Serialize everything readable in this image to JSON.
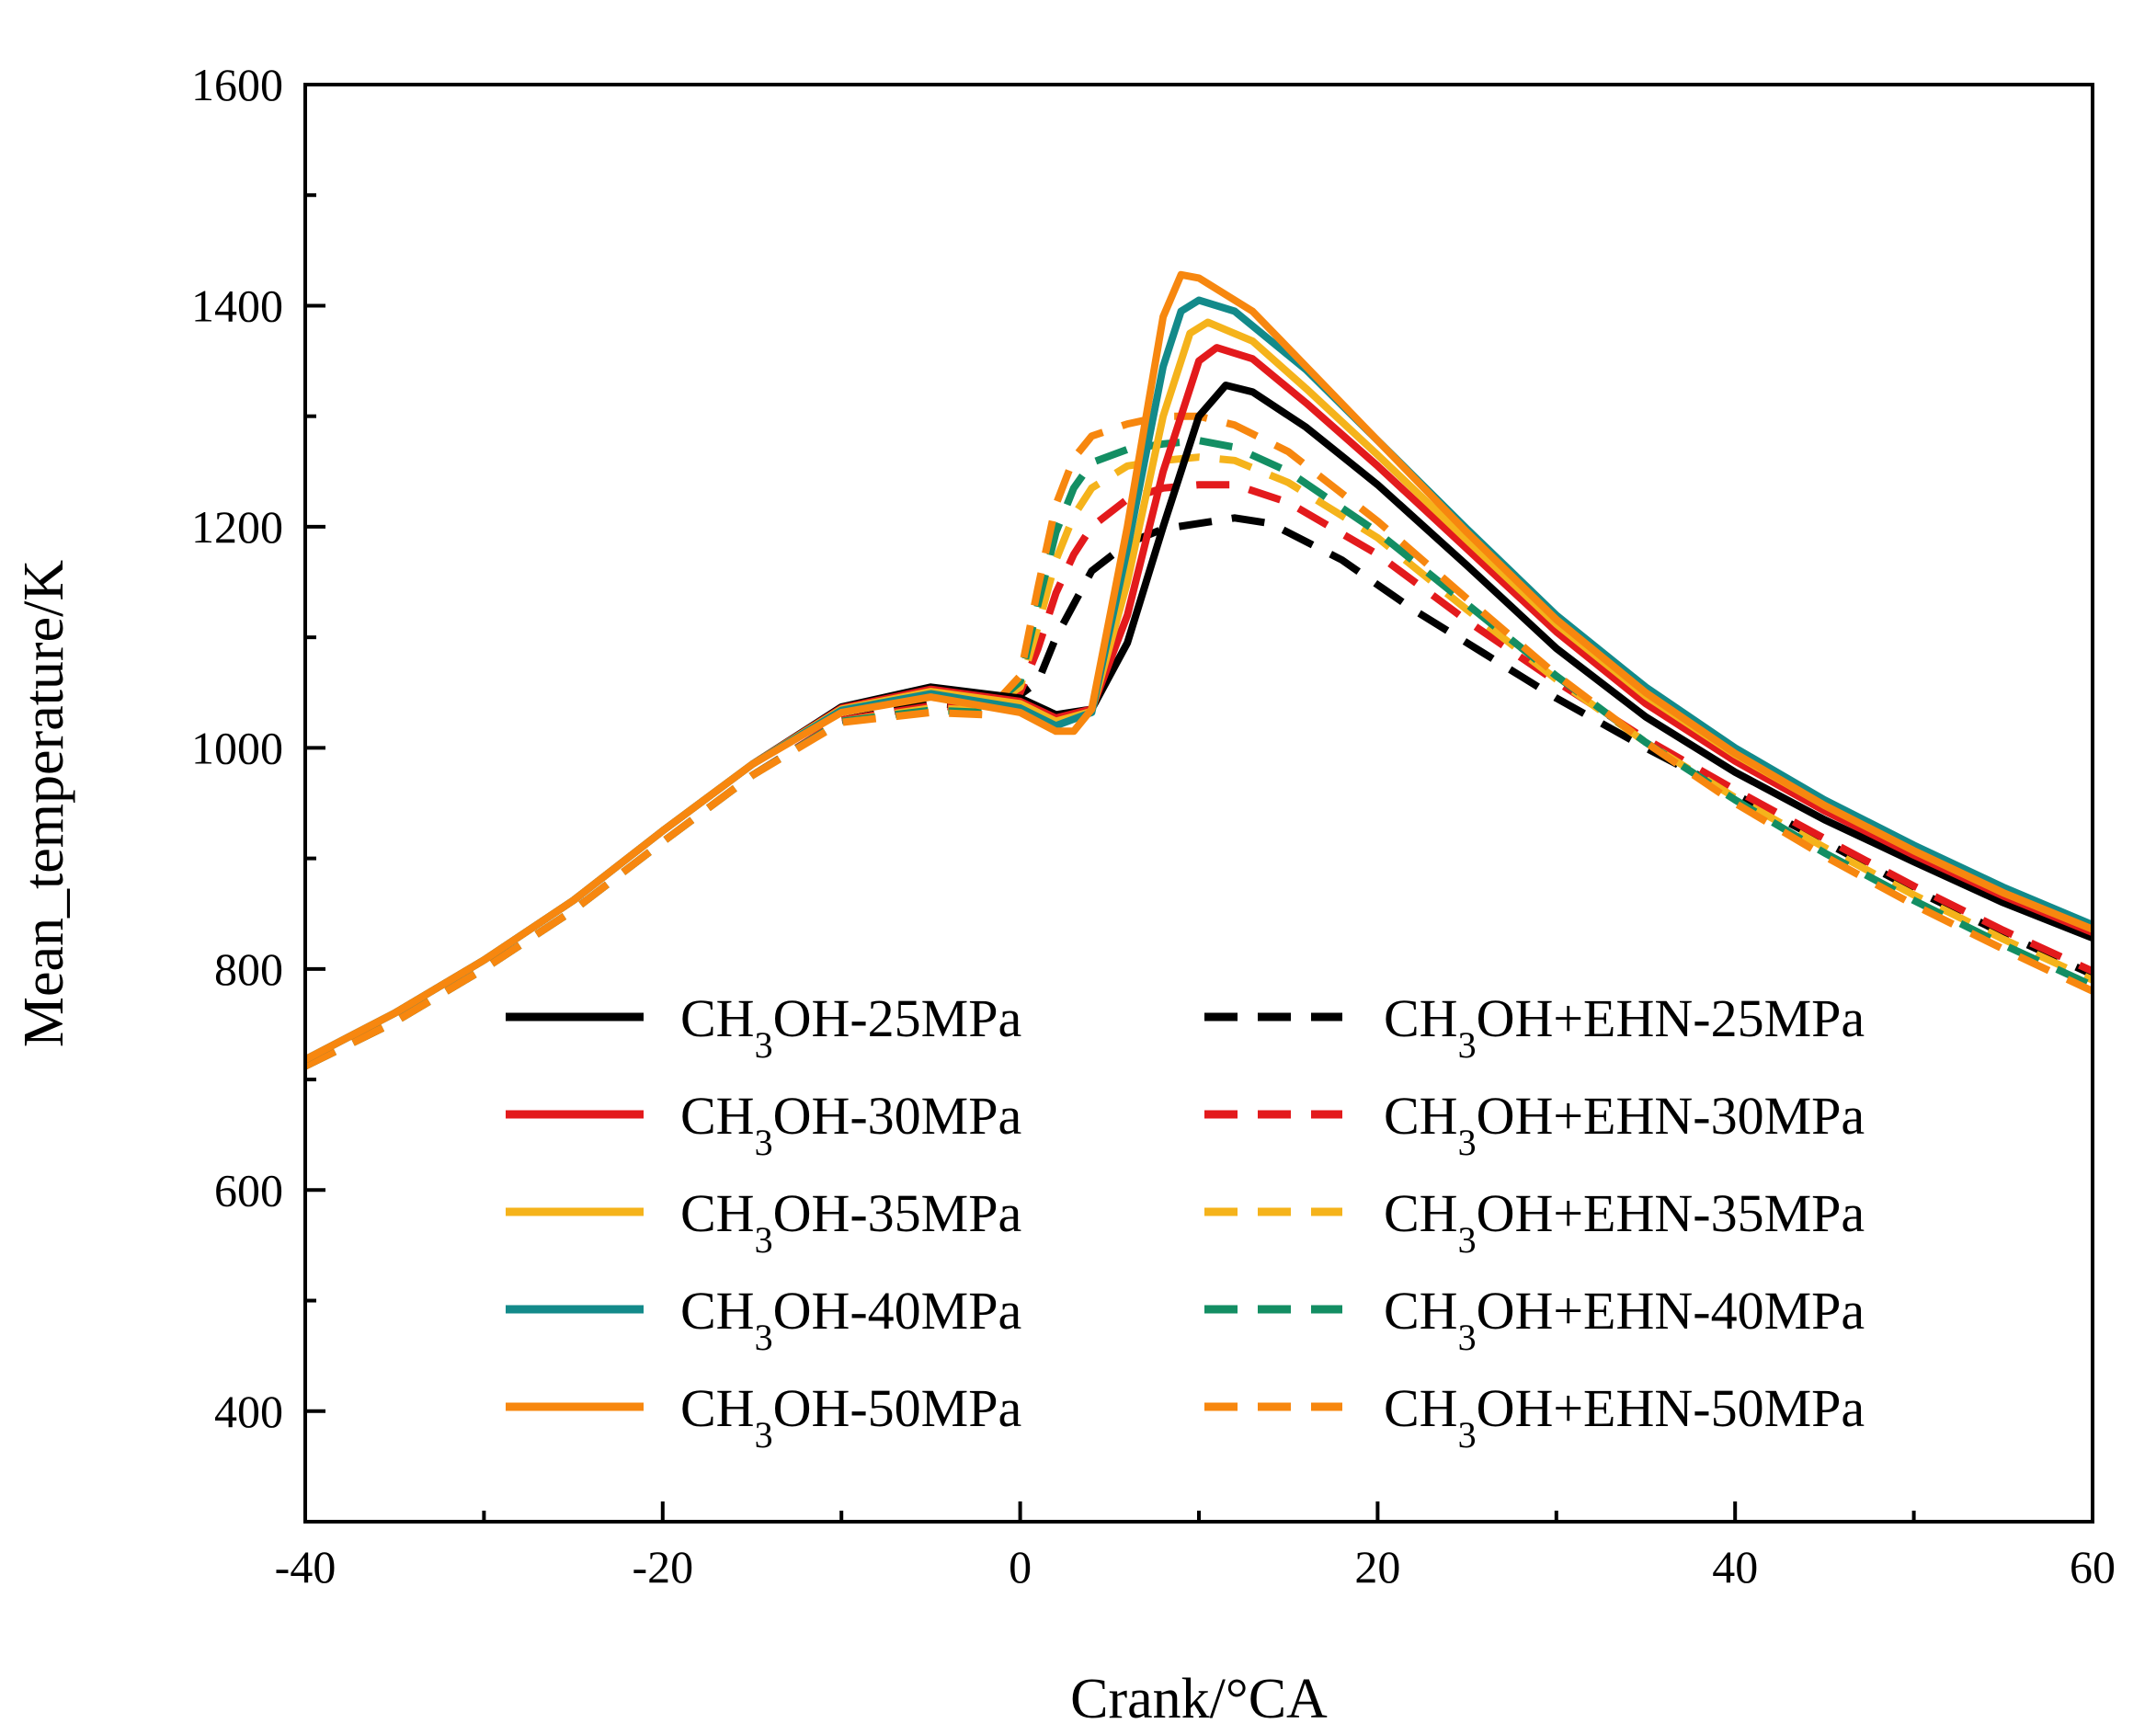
{
  "chart_data": {
    "type": "line",
    "title": "",
    "xlabel": "Crank/°CA",
    "ylabel": "Mean_temperature/K",
    "xlim": [
      -40,
      60
    ],
    "ylim": [
      300,
      1600
    ],
    "xticks": [
      -40,
      -20,
      0,
      20,
      40,
      60
    ],
    "yticks": [
      400,
      600,
      800,
      1000,
      1200,
      1400,
      1600
    ],
    "x_tick_labels": [
      "-40",
      "-20",
      "0",
      "20",
      "40",
      "60"
    ],
    "y_tick_labels": [
      "400",
      "600",
      "800",
      "1000",
      "1200",
      "1400",
      "1600"
    ],
    "grid": false,
    "legend_position": "bottom-center",
    "series": [
      {
        "name": "CH3OH-25MPa",
        "label_main": "CH",
        "label_sub": "3",
        "label_rest": "OH-25MPa",
        "color": "#000000",
        "dash": false,
        "points": [
          [
            -40,
            718
          ],
          [
            -35,
            760
          ],
          [
            -30,
            808
          ],
          [
            -25,
            862
          ],
          [
            -20,
            925
          ],
          [
            -15,
            985
          ],
          [
            -10,
            1037
          ],
          [
            -5,
            1055
          ],
          [
            0,
            1045
          ],
          [
            2,
            1030
          ],
          [
            4,
            1035
          ],
          [
            6,
            1095
          ],
          [
            8,
            1200
          ],
          [
            10,
            1300
          ],
          [
            11.5,
            1328
          ],
          [
            13,
            1322
          ],
          [
            16,
            1290
          ],
          [
            20,
            1238
          ],
          [
            25,
            1165
          ],
          [
            30,
            1090
          ],
          [
            35,
            1028
          ],
          [
            40,
            978
          ],
          [
            45,
            935
          ],
          [
            50,
            897
          ],
          [
            55,
            860
          ],
          [
            60,
            828
          ]
        ]
      },
      {
        "name": "CH3OH-30MPa",
        "label_main": "CH",
        "label_sub": "3",
        "label_rest": "OH-30MPa",
        "color": "#e31a1c",
        "dash": false,
        "points": [
          [
            -40,
            718
          ],
          [
            -35,
            760
          ],
          [
            -30,
            808
          ],
          [
            -25,
            862
          ],
          [
            -20,
            925
          ],
          [
            -15,
            985
          ],
          [
            -10,
            1036
          ],
          [
            -5,
            1053
          ],
          [
            0,
            1042
          ],
          [
            2,
            1027
          ],
          [
            4,
            1035
          ],
          [
            6,
            1120
          ],
          [
            8,
            1250
          ],
          [
            10,
            1350
          ],
          [
            11,
            1362
          ],
          [
            13,
            1352
          ],
          [
            16,
            1312
          ],
          [
            20,
            1255
          ],
          [
            25,
            1180
          ],
          [
            30,
            1105
          ],
          [
            35,
            1040
          ],
          [
            40,
            988
          ],
          [
            45,
            943
          ],
          [
            50,
            903
          ],
          [
            55,
            866
          ],
          [
            60,
            833
          ]
        ]
      },
      {
        "name": "CH3OH-35MPa",
        "label_main": "CH",
        "label_sub": "3",
        "label_rest": "OH-35MPa",
        "color": "#f5b31b",
        "dash": false,
        "points": [
          [
            -40,
            718
          ],
          [
            -35,
            760
          ],
          [
            -30,
            808
          ],
          [
            -25,
            862
          ],
          [
            -20,
            925
          ],
          [
            -15,
            985
          ],
          [
            -10,
            1035
          ],
          [
            -5,
            1051
          ],
          [
            0,
            1040
          ],
          [
            2,
            1024
          ],
          [
            4,
            1033
          ],
          [
            6,
            1150
          ],
          [
            8,
            1300
          ],
          [
            9.5,
            1375
          ],
          [
            10.5,
            1385
          ],
          [
            13,
            1368
          ],
          [
            16,
            1325
          ],
          [
            20,
            1265
          ],
          [
            25,
            1188
          ],
          [
            30,
            1112
          ],
          [
            35,
            1047
          ],
          [
            40,
            994
          ],
          [
            45,
            948
          ],
          [
            50,
            907
          ],
          [
            55,
            869
          ],
          [
            60,
            836
          ]
        ]
      },
      {
        "name": "CH3OH-40MPa",
        "label_main": "CH",
        "label_sub": "3",
        "label_rest": "OH-40MPa",
        "color": "#138a8a",
        "dash": false,
        "points": [
          [
            -40,
            718
          ],
          [
            -35,
            760
          ],
          [
            -30,
            808
          ],
          [
            -25,
            862
          ],
          [
            -20,
            925
          ],
          [
            -15,
            985
          ],
          [
            -10,
            1034
          ],
          [
            -5,
            1049
          ],
          [
            0,
            1036
          ],
          [
            2,
            1020
          ],
          [
            4,
            1032
          ],
          [
            6,
            1180
          ],
          [
            8,
            1345
          ],
          [
            9,
            1395
          ],
          [
            10,
            1405
          ],
          [
            12,
            1395
          ],
          [
            16,
            1342
          ],
          [
            20,
            1278
          ],
          [
            25,
            1198
          ],
          [
            30,
            1120
          ],
          [
            35,
            1055
          ],
          [
            40,
            1000
          ],
          [
            45,
            953
          ],
          [
            50,
            912
          ],
          [
            55,
            874
          ],
          [
            60,
            840
          ]
        ]
      },
      {
        "name": "CH3OH-50MPa",
        "label_main": "CH",
        "label_sub": "3",
        "label_rest": "OH-50MPa",
        "color": "#f7870f",
        "dash": false,
        "points": [
          [
            -40,
            718
          ],
          [
            -35,
            760
          ],
          [
            -30,
            808
          ],
          [
            -25,
            862
          ],
          [
            -20,
            925
          ],
          [
            -15,
            985
          ],
          [
            -10,
            1032
          ],
          [
            -5,
            1046
          ],
          [
            0,
            1032
          ],
          [
            2,
            1015
          ],
          [
            3,
            1015
          ],
          [
            4,
            1035
          ],
          [
            6,
            1200
          ],
          [
            8,
            1390
          ],
          [
            9,
            1428
          ],
          [
            10,
            1425
          ],
          [
            13,
            1395
          ],
          [
            16,
            1345
          ],
          [
            20,
            1278
          ],
          [
            25,
            1195
          ],
          [
            30,
            1116
          ],
          [
            35,
            1050
          ],
          [
            40,
            995
          ],
          [
            45,
            948
          ],
          [
            50,
            907
          ],
          [
            55,
            869
          ],
          [
            60,
            836
          ]
        ]
      },
      {
        "name": "CH3OH+EHN-25MPa",
        "label_main": "CH",
        "label_sub": "3",
        "label_rest": "OH+EHN-25MPa",
        "color": "#000000",
        "dash": true,
        "points": [
          [
            -40,
            712
          ],
          [
            -35,
            752
          ],
          [
            -30,
            800
          ],
          [
            -25,
            853
          ],
          [
            -20,
            915
          ],
          [
            -15,
            975
          ],
          [
            -10,
            1025
          ],
          [
            -5,
            1040
          ],
          [
            -2,
            1038
          ],
          [
            0,
            1048
          ],
          [
            1,
            1060
          ],
          [
            2,
            1100
          ],
          [
            3,
            1130
          ],
          [
            4,
            1160
          ],
          [
            6,
            1185
          ],
          [
            8,
            1198
          ],
          [
            10,
            1203
          ],
          [
            12,
            1208
          ],
          [
            14,
            1203
          ],
          [
            18,
            1170
          ],
          [
            22,
            1125
          ],
          [
            26,
            1085
          ],
          [
            30,
            1045
          ],
          [
            35,
            1000
          ],
          [
            40,
            958
          ],
          [
            45,
            915
          ],
          [
            50,
            872
          ],
          [
            55,
            832
          ],
          [
            60,
            795
          ]
        ]
      },
      {
        "name": "CH3OH+EHN-30MPa",
        "label_main": "CH",
        "label_sub": "3",
        "label_rest": "OH+EHN-30MPa",
        "color": "#e31a1c",
        "dash": true,
        "points": [
          [
            -40,
            712
          ],
          [
            -35,
            752
          ],
          [
            -30,
            800
          ],
          [
            -25,
            853
          ],
          [
            -20,
            915
          ],
          [
            -15,
            975
          ],
          [
            -10,
            1025
          ],
          [
            -5,
            1038
          ],
          [
            -2,
            1036
          ],
          [
            0,
            1050
          ],
          [
            1,
            1090
          ],
          [
            2,
            1140
          ],
          [
            3,
            1175
          ],
          [
            4,
            1200
          ],
          [
            6,
            1225
          ],
          [
            8,
            1235
          ],
          [
            10,
            1238
          ],
          [
            12,
            1238
          ],
          [
            15,
            1222
          ],
          [
            20,
            1175
          ],
          [
            25,
            1115
          ],
          [
            30,
            1060
          ],
          [
            35,
            1008
          ],
          [
            40,
            962
          ],
          [
            45,
            918
          ],
          [
            50,
            875
          ],
          [
            55,
            835
          ],
          [
            60,
            798
          ]
        ]
      },
      {
        "name": "CH3OH+EHN-35MPa",
        "label_main": "CH",
        "label_sub": "3",
        "label_rest": "OH+EHN-35MPa",
        "color": "#f5b31b",
        "dash": true,
        "points": [
          [
            -40,
            712
          ],
          [
            -35,
            752
          ],
          [
            -30,
            800
          ],
          [
            -25,
            853
          ],
          [
            -20,
            915
          ],
          [
            -15,
            975
          ],
          [
            -10,
            1024
          ],
          [
            -5,
            1036
          ],
          [
            -2,
            1034
          ],
          [
            0,
            1055
          ],
          [
            1,
            1110
          ],
          [
            2,
            1170
          ],
          [
            3,
            1210
          ],
          [
            4,
            1235
          ],
          [
            6,
            1255
          ],
          [
            8,
            1260
          ],
          [
            10,
            1263
          ],
          [
            12,
            1260
          ],
          [
            15,
            1240
          ],
          [
            20,
            1190
          ],
          [
            25,
            1125
          ],
          [
            30,
            1062
          ],
          [
            35,
            1005
          ],
          [
            40,
            955
          ],
          [
            45,
            910
          ],
          [
            50,
            867
          ],
          [
            55,
            827
          ],
          [
            60,
            790
          ]
        ]
      },
      {
        "name": "CH3OH+EHN-40MPa",
        "label_main": "CH",
        "label_sub": "3",
        "label_rest": "OH+EHN-40MPa",
        "color": "#138e63",
        "dash": true,
        "points": [
          [
            -40,
            712
          ],
          [
            -35,
            752
          ],
          [
            -30,
            800
          ],
          [
            -25,
            853
          ],
          [
            -20,
            915
          ],
          [
            -15,
            975
          ],
          [
            -10,
            1024
          ],
          [
            -5,
            1034
          ],
          [
            -2,
            1032
          ],
          [
            0,
            1060
          ],
          [
            1,
            1130
          ],
          [
            2,
            1195
          ],
          [
            3,
            1235
          ],
          [
            4,
            1258
          ],
          [
            6,
            1270
          ],
          [
            8,
            1275
          ],
          [
            10,
            1278
          ],
          [
            12,
            1272
          ],
          [
            15,
            1250
          ],
          [
            20,
            1195
          ],
          [
            25,
            1130
          ],
          [
            30,
            1065
          ],
          [
            35,
            1005
          ],
          [
            40,
            953
          ],
          [
            45,
            905
          ],
          [
            50,
            862
          ],
          [
            55,
            822
          ],
          [
            60,
            785
          ]
        ]
      },
      {
        "name": "CH3OH+EHN-50MPa",
        "label_main": "CH",
        "label_sub": "3",
        "label_rest": "OH+EHN-50MPa",
        "color": "#f7870f",
        "dash": true,
        "points": [
          [
            -40,
            712
          ],
          [
            -35,
            752
          ],
          [
            -30,
            800
          ],
          [
            -25,
            853
          ],
          [
            -20,
            915
          ],
          [
            -15,
            975
          ],
          [
            -10,
            1023
          ],
          [
            -5,
            1032
          ],
          [
            -2,
            1030
          ],
          [
            0,
            1065
          ],
          [
            1,
            1145
          ],
          [
            2,
            1220
          ],
          [
            3,
            1262
          ],
          [
            4,
            1282
          ],
          [
            6,
            1293
          ],
          [
            8,
            1300
          ],
          [
            10,
            1300
          ],
          [
            12,
            1292
          ],
          [
            15,
            1268
          ],
          [
            20,
            1205
          ],
          [
            25,
            1135
          ],
          [
            30,
            1066
          ],
          [
            35,
            1005
          ],
          [
            40,
            950
          ],
          [
            45,
            902
          ],
          [
            50,
            858
          ],
          [
            55,
            818
          ],
          [
            60,
            780
          ]
        ]
      }
    ]
  }
}
